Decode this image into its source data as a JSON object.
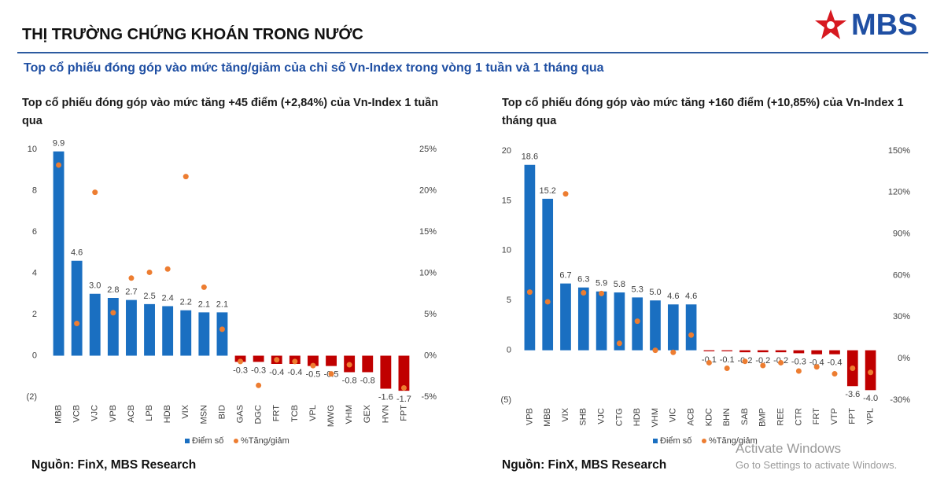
{
  "header": {
    "title": "THỊ TRƯỜNG CHỨNG KHOÁN TRONG NƯỚC",
    "logo": "MBS",
    "subtitle": "Top cổ phiếu đóng góp vào mức tăng/giảm của chỉ số Vn-Index trong vòng 1 tuần và 1 tháng qua"
  },
  "chart_data": [
    {
      "type": "bar",
      "title": "Top cổ phiếu đóng góp vào mức tăng +45 điểm (+2,84%) của Vn-Index 1 tuần qua",
      "categories": [
        "MBB",
        "VCB",
        "VJC",
        "VPB",
        "ACB",
        "LPB",
        "HDB",
        "VIX",
        "MSN",
        "BID",
        "GAS",
        "DGC",
        "FRT",
        "TCB",
        "VPL",
        "MWG",
        "VHM",
        "GEX",
        "HVN",
        "FPT"
      ],
      "series": [
        {
          "name": "Điểm số",
          "color": "#1a6fc1",
          "negative_color": "#c00000",
          "values": [
            9.9,
            4.6,
            3.0,
            2.8,
            2.7,
            2.5,
            2.4,
            2.2,
            2.1,
            2.1,
            -0.3,
            -0.3,
            -0.4,
            -0.4,
            -0.5,
            -0.5,
            -0.8,
            -0.8,
            -1.6,
            -1.7
          ],
          "value_labels": [
            "9.9",
            "4.6",
            "3.0",
            "2.8",
            "2.7",
            "2.5",
            "2.4",
            "2.2",
            "2.1",
            "2.1",
            "-0.3",
            "-0.3",
            "-0.4",
            "-0.4",
            "-0.5",
            "-0.5",
            "-0.8",
            "-0.8",
            "-1.6",
            "-1.7"
          ]
        },
        {
          "name": "%Tăng/giảm",
          "type": "scatter",
          "axis": "y2",
          "color": "#ed7d31",
          "values": [
            23.1,
            3.9,
            19.8,
            5.2,
            9.4,
            10.1,
            10.5,
            21.7,
            8.3,
            3.2,
            -0.7,
            -3.6,
            -0.5,
            -0.7,
            -1.2,
            -2.2,
            -1.1,
            null,
            null,
            -3.9
          ]
        }
      ],
      "ylim": [
        -2,
        10
      ],
      "yticks": [
        {
          "value": -2,
          "label": "(2)"
        },
        0,
        2,
        4,
        6,
        8,
        10
      ],
      "y2lim": [
        -5,
        25
      ],
      "y2ticks": [
        {
          "value": -5,
          "label": "-5%"
        },
        {
          "value": 0,
          "label": "0%"
        },
        {
          "value": 5,
          "label": "5%"
        },
        {
          "value": 10,
          "label": "10%"
        },
        {
          "value": 15,
          "label": "15%"
        },
        {
          "value": 20,
          "label": "20%"
        },
        {
          "value": 25,
          "label": "25%"
        }
      ],
      "source": "Nguồn: FinX, MBS Research"
    },
    {
      "type": "bar",
      "title": "Top cổ phiếu đóng góp vào mức tăng +160 điểm (+10,85%) của Vn-Index 1 tháng qua",
      "categories": [
        "VPB",
        "MBB",
        "VIX",
        "SHB",
        "VJC",
        "CTG",
        "HDB",
        "VHM",
        "VIC",
        "ACB",
        "KDC",
        "BHN",
        "SAB",
        "BMP",
        "REE",
        "CTR",
        "FRT",
        "VTP",
        "FPT",
        "VPL"
      ],
      "series": [
        {
          "name": "Điểm số",
          "color": "#1a6fc1",
          "negative_color": "#c00000",
          "values": [
            18.6,
            15.2,
            6.7,
            6.3,
            5.9,
            5.8,
            5.3,
            5.0,
            4.6,
            4.6,
            -0.1,
            -0.1,
            -0.2,
            -0.2,
            -0.2,
            -0.3,
            -0.4,
            -0.4,
            -3.6,
            -4.0
          ],
          "value_labels": [
            "18.6",
            "15.2",
            "6.7",
            "6.3",
            "5.9",
            "5.8",
            "5.3",
            "5.0",
            "4.6",
            "4.6",
            "-0.1",
            "-0.1",
            "-0.2",
            "-0.2",
            "-0.2",
            "-0.3",
            "-0.4",
            "-0.4",
            "-3.6",
            "-4.0"
          ]
        },
        {
          "name": "%Tăng/giảm",
          "type": "scatter",
          "axis": "y2",
          "color": "#ed7d31",
          "values": [
            48,
            41,
            119,
            47.5,
            47,
            11,
            27,
            6,
            4.5,
            17,
            -3,
            -7,
            -2,
            -5,
            -3,
            -9,
            -6,
            -11,
            -7,
            -10
          ]
        }
      ],
      "ylim": [
        -5,
        20
      ],
      "yticks": [
        {
          "value": -5,
          "label": "(5)"
        },
        0,
        5,
        10,
        15,
        20
      ],
      "y2lim": [
        -30,
        150
      ],
      "y2ticks": [
        {
          "value": -30,
          "label": "-30%"
        },
        {
          "value": 0,
          "label": "0%"
        },
        {
          "value": 30,
          "label": "30%"
        },
        {
          "value": 60,
          "label": "60%"
        },
        {
          "value": 90,
          "label": "90%"
        },
        {
          "value": 120,
          "label": "120%"
        },
        {
          "value": 150,
          "label": "150%"
        }
      ],
      "source": "Nguồn: FinX, MBS Research"
    }
  ],
  "watermark": {
    "title": "Activate Windows",
    "text": "Go to Settings to activate Windows."
  }
}
